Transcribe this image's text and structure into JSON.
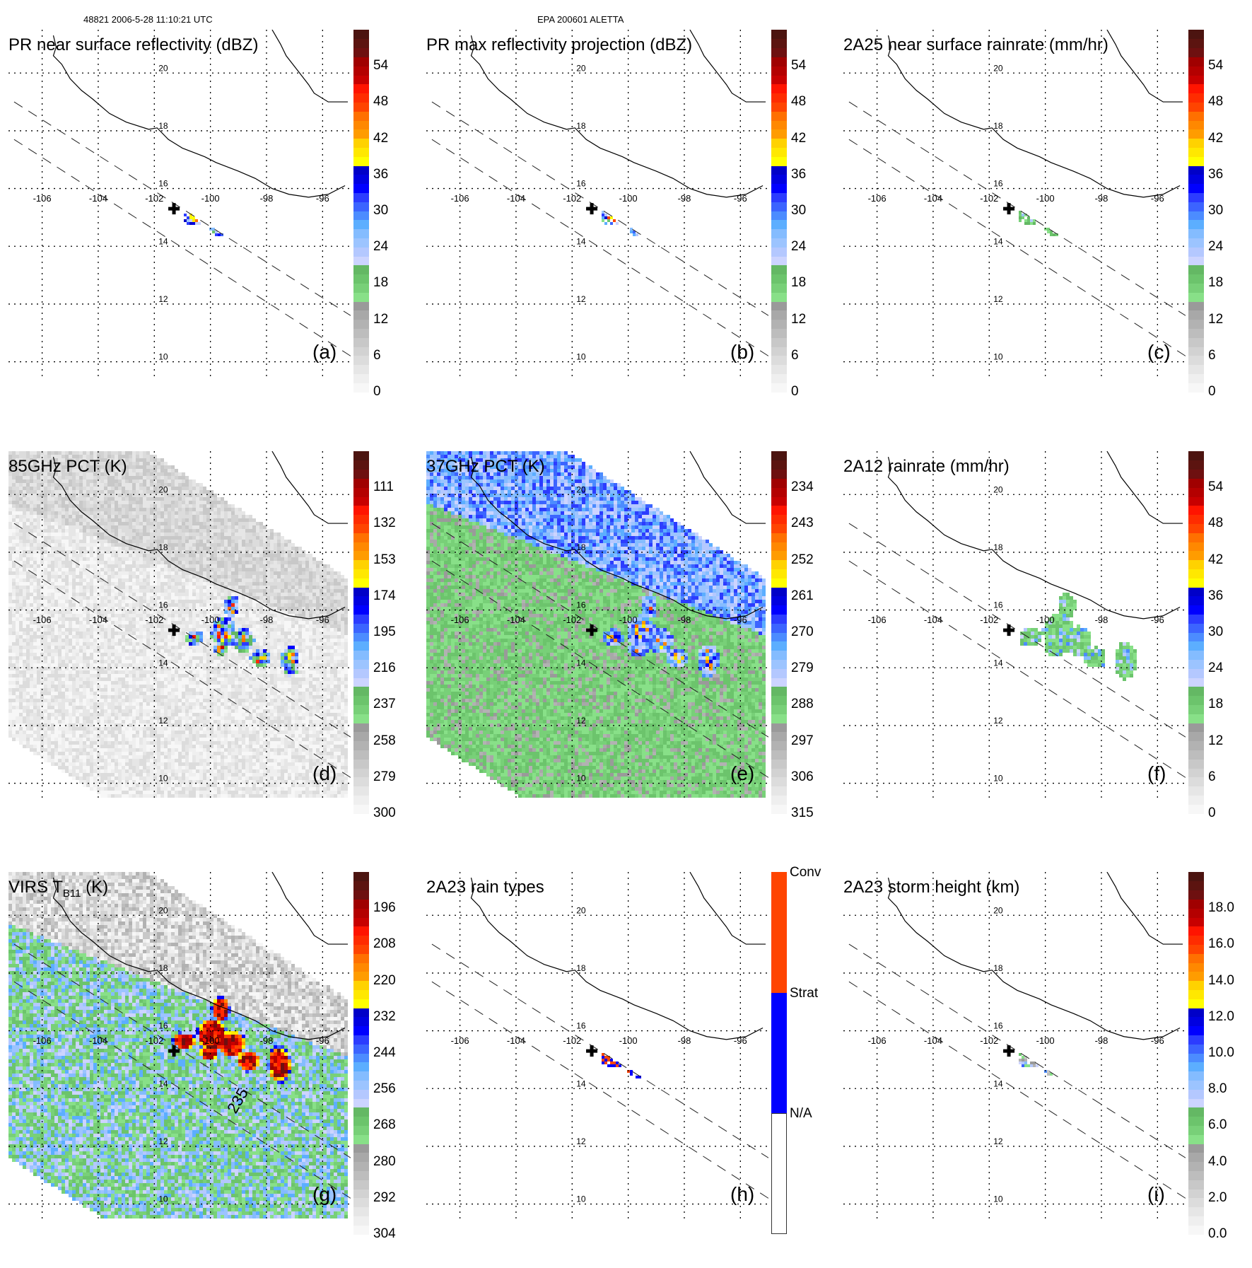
{
  "header": {
    "left": "48821 2006-5-28 11:10:21 UTC",
    "center": "EPA 200601 ALETTA"
  },
  "map": {
    "lon_ticks": [
      "-106",
      "-104",
      "-102",
      "-100",
      "-98",
      "-96"
    ],
    "lat_ticks": [
      "20",
      "18",
      "16",
      "14",
      "12",
      "10"
    ],
    "lon_range": [
      -107.2,
      -95.0
    ],
    "lat_range": [
      9.5,
      21.5
    ],
    "storm_center": {
      "lon": -101.3,
      "lat": 15.3,
      "marker": "cross-icon"
    }
  },
  "colors": {
    "ramp": [
      "#f7f7f7",
      "#efefef",
      "#e6e6e6",
      "#dcdcdc",
      "#d2d2d2",
      "#c8c8c8",
      "#bdbdbd",
      "#b2b2b2",
      "#a8a8a8",
      "#9a9a9a",
      "#88e088",
      "#78d078",
      "#6cc46c",
      "#64b864",
      "#ccd4ff",
      "#b4c8ff",
      "#9cc4ff",
      "#84bcff",
      "#5caeff",
      "#4c8cff",
      "#3c64ff",
      "#2c3cff",
      "#0000ff",
      "#0000e0",
      "#0000c8",
      "#ffff00",
      "#ffe800",
      "#ffd200",
      "#ff9c00",
      "#ff8800",
      "#ff7000",
      "#ff4400",
      "#ff2c00",
      "#ff1400",
      "#c80000",
      "#b40000",
      "#a00000",
      "#6e1010",
      "#5c1410",
      "#4c1410"
    ],
    "rain_types": {
      "conv": "#ff4400",
      "strat": "#0000ff",
      "na": "#ffffff"
    }
  },
  "chart_data": [
    {
      "id": "a",
      "type": "heatmap",
      "title": "PR near surface reflectivity (dBZ)",
      "panel_label": "(a)",
      "colorbar": {
        "ticks": [
          "54",
          "48",
          "42",
          "36",
          "30",
          "24",
          "18",
          "12",
          "6",
          "0"
        ],
        "range": [
          0,
          60
        ],
        "units": "dBZ"
      },
      "field": "precip_swath",
      "swath": "pr"
    },
    {
      "id": "b",
      "type": "heatmap",
      "title": "PR max reflectivity projection (dBZ)",
      "panel_label": "(b)",
      "colorbar": {
        "ticks": [
          "54",
          "48",
          "42",
          "36",
          "30",
          "24",
          "18",
          "12",
          "6",
          "0"
        ],
        "range": [
          0,
          60
        ],
        "units": "dBZ"
      },
      "field": "precip_swath_contoured",
      "swath": "pr"
    },
    {
      "id": "c",
      "type": "heatmap",
      "title": "2A25 near surface rainrate (mm/hr)",
      "panel_label": "(c)",
      "colorbar": {
        "ticks": [
          "54",
          "48",
          "42",
          "36",
          "30",
          "24",
          "18",
          "12",
          "6",
          "0"
        ],
        "range": [
          0,
          60
        ],
        "units": "mm/hr"
      },
      "field": "rainrate",
      "swath": "pr"
    },
    {
      "id": "d",
      "type": "heatmap",
      "title": "85GHz PCT (K)",
      "panel_label": "(d)",
      "colorbar": {
        "ticks": [
          "111",
          "132",
          "153",
          "174",
          "195",
          "216",
          "237",
          "258",
          "279",
          "300"
        ],
        "range": [
          300,
          90
        ],
        "units": "K"
      },
      "field": "pct85",
      "swath": "tmi"
    },
    {
      "id": "e",
      "type": "heatmap",
      "title": "37GHz PCT (K)",
      "panel_label": "(e)",
      "colorbar": {
        "ticks": [
          "234",
          "243",
          "252",
          "261",
          "270",
          "279",
          "288",
          "297",
          "306",
          "315"
        ],
        "range": [
          315,
          225
        ],
        "units": "K"
      },
      "field": "pct37",
      "swath": "tmi"
    },
    {
      "id": "f",
      "type": "heatmap",
      "title": "2A12 rainrate (mm/hr)",
      "panel_label": "(f)",
      "colorbar": {
        "ticks": [
          "54",
          "48",
          "42",
          "36",
          "30",
          "24",
          "18",
          "12",
          "6",
          "0"
        ],
        "range": [
          0,
          60
        ],
        "units": "mm/hr"
      },
      "field": "rainrate_tmi",
      "swath": "tmi"
    },
    {
      "id": "g",
      "type": "heatmap",
      "title_main": "VIRS T",
      "title_sub": "B11",
      "title_units": " (K)",
      "panel_label": "(g)",
      "colorbar": {
        "ticks": [
          "196",
          "208",
          "220",
          "232",
          "244",
          "256",
          "268",
          "280",
          "292",
          "304"
        ],
        "range": [
          304,
          184
        ],
        "units": "K"
      },
      "contour_label": "235",
      "field": "virs_ir",
      "swath": "virs"
    },
    {
      "id": "h",
      "type": "heatmap",
      "title": "2A23 rain types",
      "panel_label": "(h)",
      "colorbar": {
        "categories": [
          "Conv",
          "Strat",
          "N/A"
        ]
      },
      "field": "raintype",
      "swath": "pr"
    },
    {
      "id": "i",
      "type": "heatmap",
      "title": "2A23 storm height (km)",
      "panel_label": "(i)",
      "colorbar": {
        "ticks": [
          "18.0",
          "16.0",
          "14.0",
          "12.0",
          "10.0",
          "8.0",
          "6.0",
          "4.0",
          "2.0",
          "0.0"
        ],
        "range": [
          0,
          20
        ],
        "units": "km"
      },
      "field": "storm_height",
      "swath": "pr"
    }
  ]
}
